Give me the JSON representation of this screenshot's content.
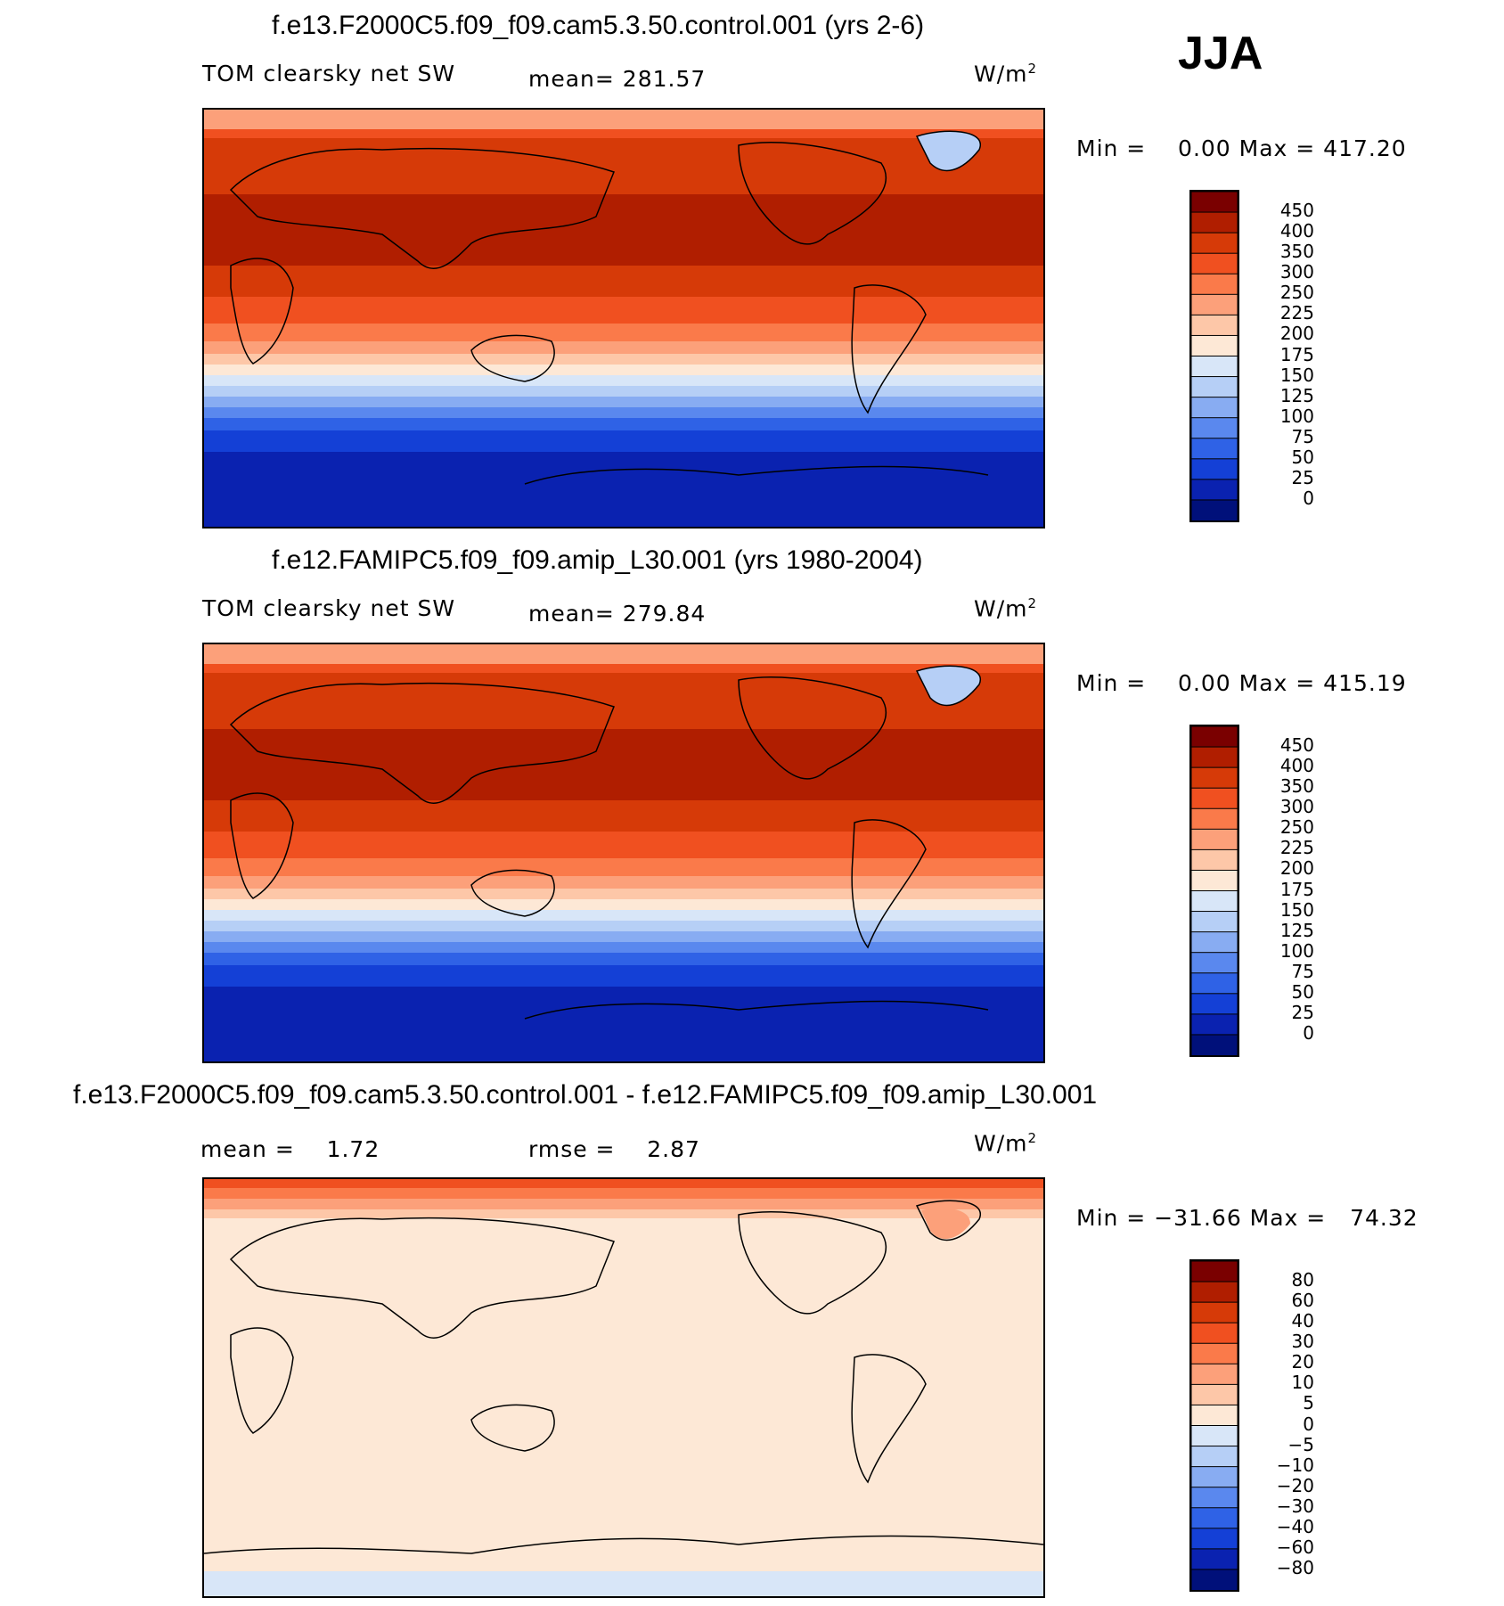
{
  "season": "JJA",
  "panels": [
    {
      "title": "f.e13.F2000C5.f09_f09.cam5.3.50.control.001 (yrs 2-6)",
      "left_label": "TOM clearsky net SW",
      "center_label": "mean= 281.57",
      "units": "W/m",
      "units_sup": "2",
      "minmax": "Min =    0.00 Max = 417.20",
      "levels": [
        "450",
        "400",
        "350",
        "300",
        "250",
        "225",
        "200",
        "175",
        "150",
        "125",
        "100",
        "75",
        "50",
        "25",
        "0"
      ],
      "colors": [
        "#7a0000",
        "#b01e00",
        "#d63a08",
        "#f05020",
        "#fa7a4a",
        "#fca07a",
        "#fdc7a8",
        "#fde8d6",
        "#d8e6f8",
        "#b6cff6",
        "#88acf2",
        "#5a88ee",
        "#2f62e6",
        "#1440d6",
        "#0a22b0",
        "#00107a"
      ]
    },
    {
      "title": "f.e12.FAMIPC5.f09_f09.amip_L30.001 (yrs 1980-2004)",
      "left_label": "TOM clearsky net SW",
      "center_label": "mean= 279.84",
      "units": "W/m",
      "units_sup": "2",
      "minmax": "Min =    0.00 Max = 415.19",
      "levels": [
        "450",
        "400",
        "350",
        "300",
        "250",
        "225",
        "200",
        "175",
        "150",
        "125",
        "100",
        "75",
        "50",
        "25",
        "0"
      ],
      "colors": [
        "#7a0000",
        "#b01e00",
        "#d63a08",
        "#f05020",
        "#fa7a4a",
        "#fca07a",
        "#fdc7a8",
        "#fde8d6",
        "#d8e6f8",
        "#b6cff6",
        "#88acf2",
        "#5a88ee",
        "#2f62e6",
        "#1440d6",
        "#0a22b0",
        "#00107a"
      ]
    },
    {
      "title": "f.e13.F2000C5.f09_f09.cam5.3.50.control.001 - f.e12.FAMIPC5.f09_f09.amip_L30.001",
      "left_label": "mean =    1.72",
      "center_label": "rmse =    2.87",
      "units": "W/m",
      "units_sup": "2",
      "minmax": "Min = −31.66 Max =   74.32",
      "levels": [
        "80",
        "60",
        "40",
        "30",
        "20",
        "10",
        "5",
        "0",
        "−5",
        "−10",
        "−20",
        "−30",
        "−40",
        "−60",
        "−80"
      ],
      "colors": [
        "#7a0000",
        "#b01e00",
        "#d63a08",
        "#f05020",
        "#fa7a4a",
        "#fca07a",
        "#fdc7a8",
        "#fde8d6",
        "#d8e6f8",
        "#b6cff6",
        "#88acf2",
        "#5a88ee",
        "#2f62e6",
        "#1440d6",
        "#0a22b0",
        "#00107a"
      ]
    }
  ]
}
